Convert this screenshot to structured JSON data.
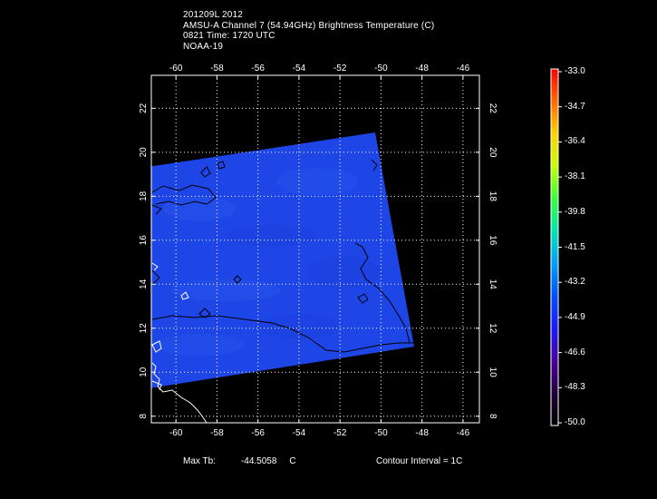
{
  "header": {
    "line1": "201209L 2012",
    "line2": "AMSU-A Channel 7 (54.94GHz) Brightness Temperature (C)",
    "line3": "0821  Time: 1720 UTC",
    "line4": "NOAA-19"
  },
  "footer": {
    "max_tb_label": "Max Tb:",
    "max_tb_value": "-44.5058",
    "max_tb_unit": "C",
    "contour_interval": "Contour Interval = 1C"
  },
  "colors": {
    "background": "#000000",
    "swath": "#1e46e6",
    "contour": "#000000",
    "grid": "#ffffff"
  },
  "map": {
    "lon_ticks": [
      "-60",
      "-58",
      "-56",
      "-54",
      "-52",
      "-50",
      "-48",
      "-46"
    ],
    "lat_ticks": [
      "8",
      "10",
      "12",
      "14",
      "16",
      "18",
      "20",
      "22"
    ],
    "lon_range": [
      -61.2,
      -45.2
    ],
    "lat_range": [
      7.7,
      23.5
    ]
  },
  "colorbar": {
    "labels": [
      "-33.0",
      "-34.7",
      "-36.4",
      "-38.1",
      "-39.8",
      "-41.5",
      "-43.2",
      "-44.9",
      "-46.6",
      "-48.3",
      "-50.0"
    ],
    "stops": [
      "#ff0000",
      "#ff6a00",
      "#ffd400",
      "#c8ff00",
      "#38ff3a",
      "#00e6b4",
      "#00a0ff",
      "#0050ff",
      "#1a1aff",
      "#4a00a0",
      "#200038",
      "#000000"
    ]
  }
}
